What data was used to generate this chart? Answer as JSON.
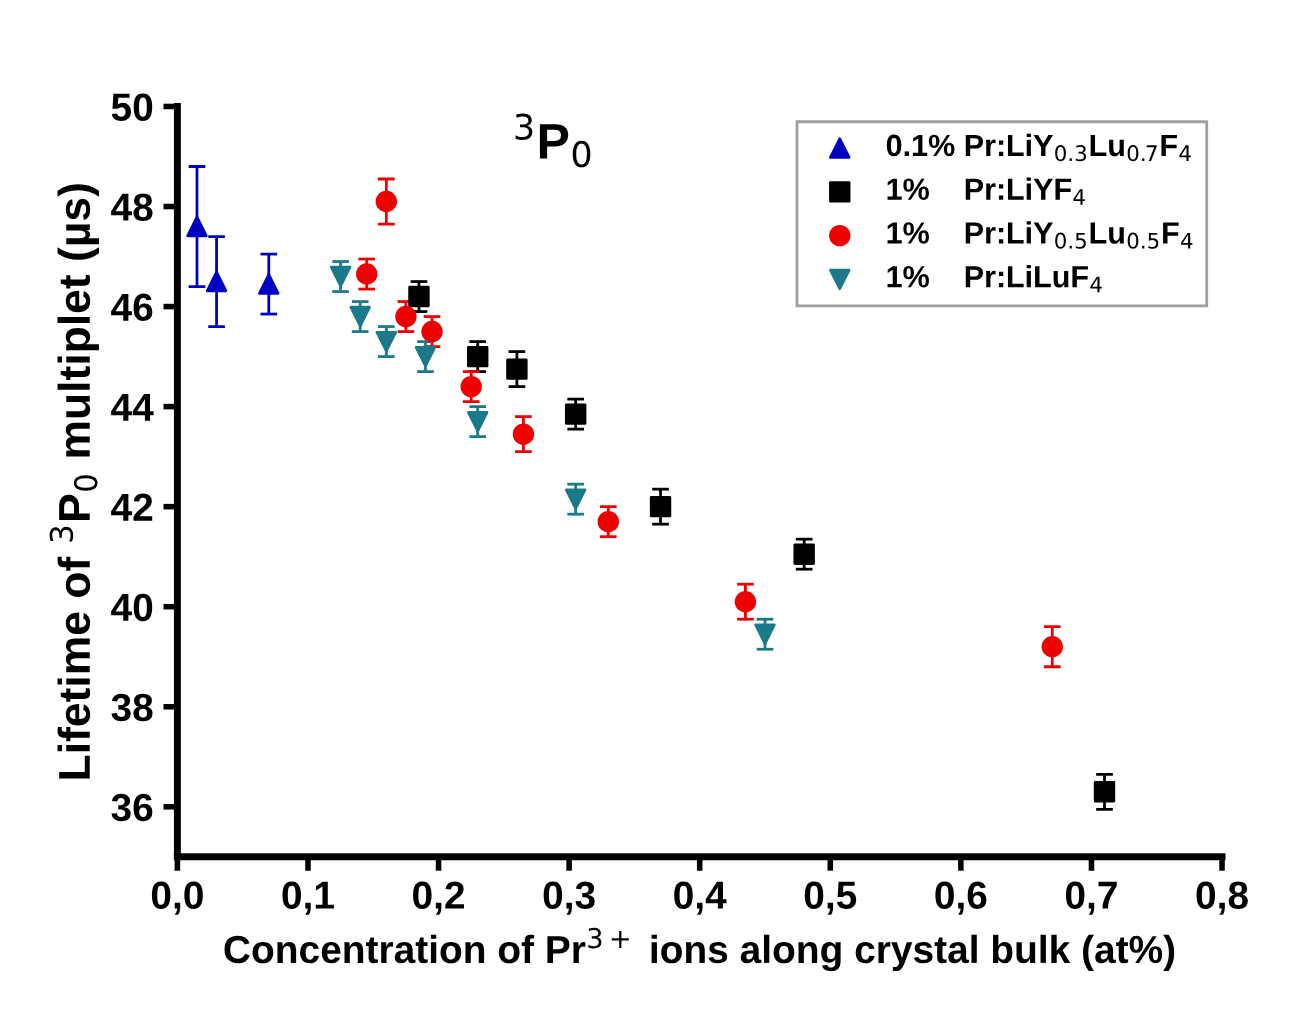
{
  "chart_data": {
    "type": "scatter",
    "title": "$^{3}$P$_{0}$",
    "xlabel": "Concentration of Pr$^{3+}$ ions along crystal bulk (at%)",
    "ylabel": "Lifetime of $^{3}$P$_{0}$ multiplet (µs)",
    "xlim": [
      0,
      0.8
    ],
    "ylim": [
      35,
      50
    ],
    "xticks": [
      {
        "value": 0,
        "label": "0,0"
      },
      {
        "value": 0.1,
        "label": "0,1"
      },
      {
        "value": 0.2,
        "label": "0,2"
      },
      {
        "value": 0.3,
        "label": "0,3"
      },
      {
        "value": 0.4,
        "label": "0,4"
      },
      {
        "value": 0.5,
        "label": "0,5"
      },
      {
        "value": 0.6,
        "label": "0,6"
      },
      {
        "value": 0.7,
        "label": "0,7"
      },
      {
        "value": 0.8,
        "label": "0,8"
      }
    ],
    "yticks": [
      36,
      38,
      40,
      42,
      44,
      46,
      48,
      50
    ],
    "grid": false,
    "legend": "top right",
    "series": [
      {
        "name": "0.1% Pr:LiY$_{0.3}$Lu$_{0.7}$F$_{4}$",
        "color": "#0000c0",
        "marker": "triangle",
        "x": [
          0.015,
          0.03,
          0.07
        ],
        "values": [
          47.6,
          46.5,
          46.45
        ],
        "errors": [
          1.2,
          0.9,
          0.6
        ]
      },
      {
        "name": "1%    Pr:LiYF$_{4}$",
        "color": "#000000",
        "marker": "square",
        "x": [
          0.185,
          0.23,
          0.26,
          0.305,
          0.37,
          0.48,
          0.71
        ],
        "values": [
          46.2,
          45.0,
          44.75,
          43.85,
          42.0,
          41.05,
          36.3
        ],
        "errors": [
          0.3,
          0.3,
          0.35,
          0.3,
          0.35,
          0.3,
          0.35
        ]
      },
      {
        "name": "1%    Pr:LiY$_{0.5}$Lu$_{0.5}$F$_{4}$",
        "color": "#ee0000",
        "marker": "circle",
        "x": [
          0.145,
          0.16,
          0.175,
          0.195,
          0.225,
          0.265,
          0.33,
          0.435,
          0.67
        ],
        "values": [
          46.65,
          48.1,
          45.8,
          45.5,
          44.4,
          43.45,
          41.7,
          40.1,
          39.2
        ],
        "errors": [
          0.3,
          0.45,
          0.3,
          0.3,
          0.3,
          0.35,
          0.3,
          0.35,
          0.4
        ]
      },
      {
        "name": "1%    Pr:LiLuF$_{4}$",
        "color": "#1a7a8a",
        "marker": "triangle_down",
        "x": [
          0.125,
          0.14,
          0.16,
          0.19,
          0.23,
          0.305,
          0.45
        ],
        "values": [
          46.6,
          45.8,
          45.3,
          45.0,
          43.7,
          42.15,
          39.45
        ],
        "errors": [
          0.3,
          0.3,
          0.3,
          0.3,
          0.3,
          0.3,
          0.3
        ]
      }
    ]
  }
}
